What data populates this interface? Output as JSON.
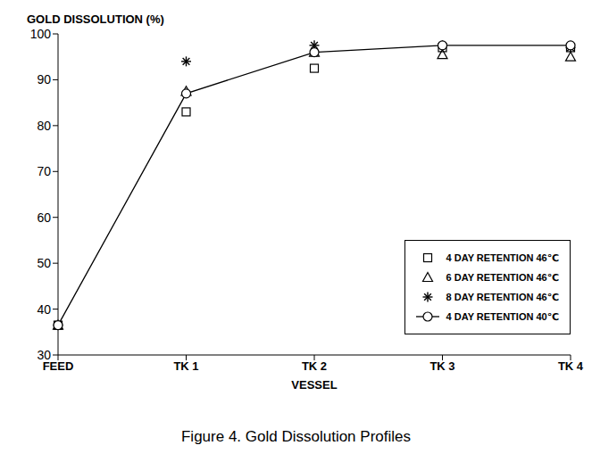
{
  "chart_data": {
    "type": "line",
    "title": "Figure 4.  Gold Dissolution Profiles",
    "y_label": "GOLD DISSOLUTION (%)",
    "x_label": "VESSEL",
    "categories": [
      "FEED",
      "TK 1",
      "TK 2",
      "TK 3",
      "TK 4"
    ],
    "series": [
      {
        "name": "4 DAY RETENTION 46℃",
        "color": "#000000",
        "marker": "square",
        "line_style": "none",
        "values": [
          36.5,
          83,
          92.5,
          97,
          97
        ]
      },
      {
        "name": "6 DAY RETENTION 46℃",
        "color": "#000000",
        "marker": "triangle",
        "line_style": "none",
        "values": [
          36.5,
          87.5,
          96,
          95.5,
          95
        ]
      },
      {
        "name": "8 DAY RETENTION 46℃",
        "color": "#000000",
        "marker": "star",
        "line_style": "none",
        "values": [
          36.5,
          94,
          97.5,
          97.5,
          97
        ]
      },
      {
        "name": "4 DAY RETENTION 40℃",
        "color": "#000000",
        "marker": "circle",
        "line_style": "solid",
        "values": [
          36.5,
          87,
          96,
          97.5,
          97.5
        ]
      }
    ],
    "ylim": [
      30,
      100
    ],
    "yticks": [
      30,
      40,
      50,
      60,
      70,
      80,
      90,
      100
    ],
    "grid": false,
    "legend": "lower right"
  }
}
